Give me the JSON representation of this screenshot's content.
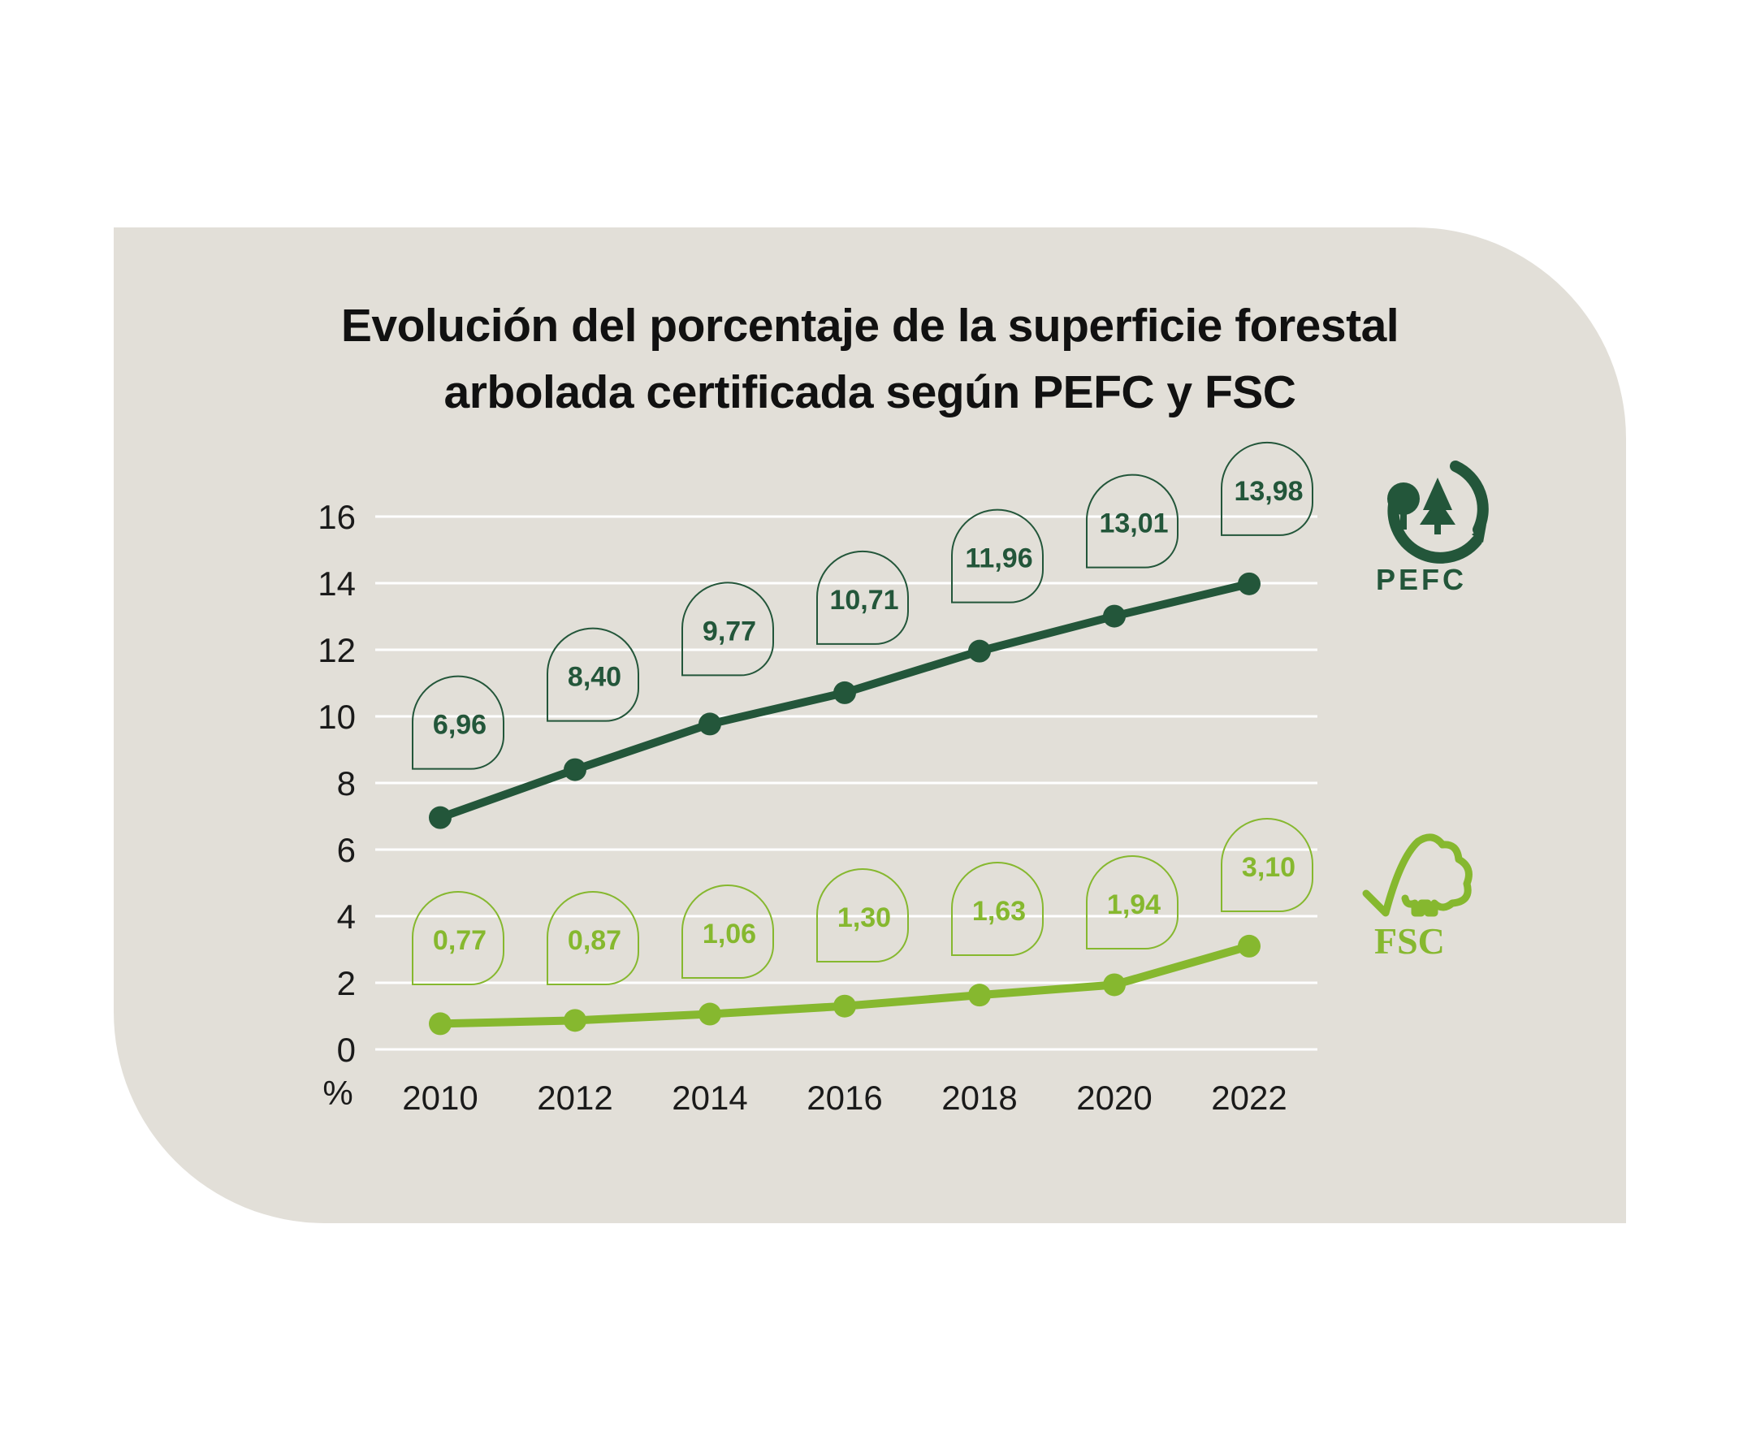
{
  "title": {
    "line1": "Evolución del porcentaje de la superficie forestal",
    "line2": "arbolada certificada según PEFC y FSC"
  },
  "colors": {
    "background": "#e2dfd8",
    "pefc": "#23563a",
    "fsc": "#86b82f",
    "grid": "#ffffff"
  },
  "chart_data": {
    "type": "line",
    "title": "Evolución del porcentaje de la superficie forestal arbolada certificada según PEFC y FSC",
    "ylabel": "%",
    "xlabel": "",
    "x": [
      "2010",
      "2012",
      "2014",
      "2016",
      "2018",
      "2020",
      "2022"
    ],
    "ylim": [
      0,
      16
    ],
    "yticks": [
      "0",
      "2",
      "4",
      "6",
      "8",
      "10",
      "12",
      "14",
      "16"
    ],
    "grid": true,
    "series": [
      {
        "name": "PEFC",
        "color": "#23563a",
        "values": [
          6.96,
          8.4,
          9.77,
          10.71,
          11.96,
          13.01,
          13.98
        ],
        "labels": [
          "6,96",
          "8,40",
          "9,77",
          "10,71",
          "11,96",
          "13,01",
          "13,98"
        ]
      },
      {
        "name": "FSC",
        "color": "#86b82f",
        "values": [
          0.77,
          0.87,
          1.06,
          1.3,
          1.63,
          1.94,
          3.1
        ],
        "labels": [
          "0,77",
          "0,87",
          "1,06",
          "1,30",
          "1,63",
          "1,94",
          "3,10"
        ]
      }
    ]
  },
  "logos": {
    "pefc": {
      "icon": "pefc-logo",
      "text": "PEFC"
    },
    "fsc": {
      "icon": "fsc-logo",
      "text": "FSC"
    }
  }
}
